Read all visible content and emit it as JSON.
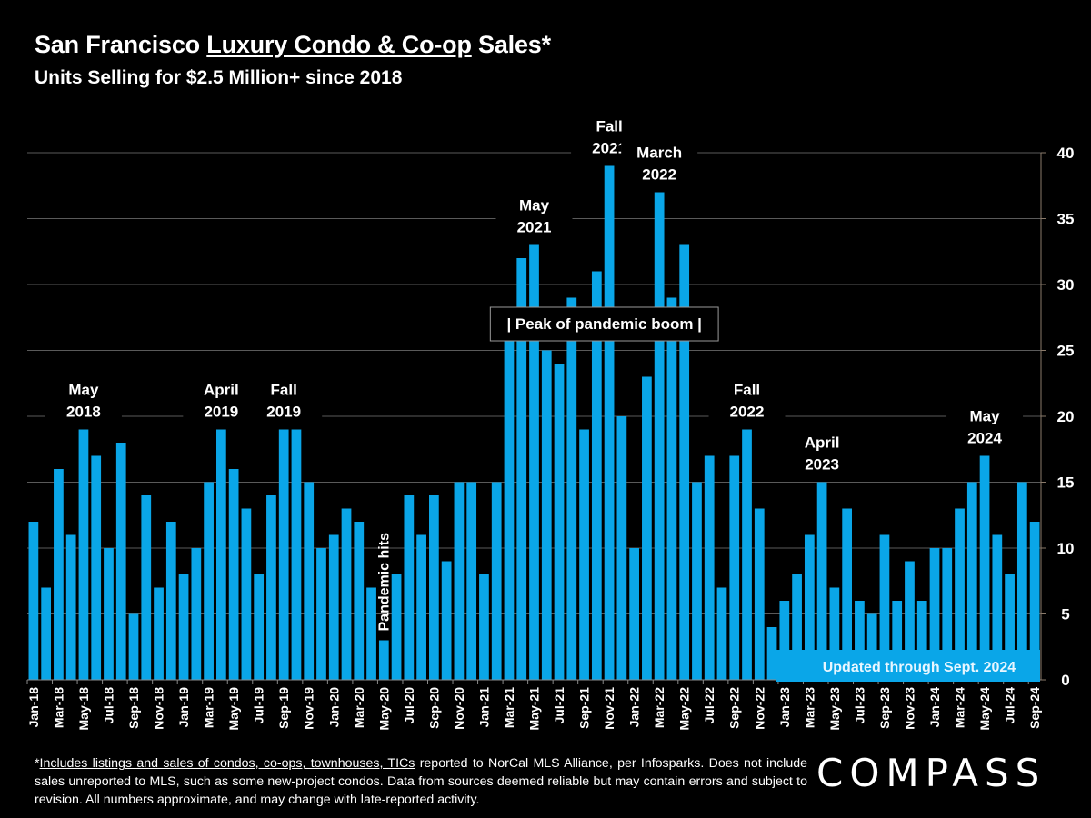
{
  "header": {
    "title_prefix": "San Francisco ",
    "title_underlined": "Luxury Condo & Co-op",
    "title_suffix": " Sales*",
    "subtitle": "Units Selling for $2.5 Million+ since 2018"
  },
  "footnote": {
    "underlined": "Includes listings and sales of condos, co-ops, townhouses, TICs",
    "prefix": "*",
    "rest": " reported to NorCal MLS Alliance, per Infosparks. Does not include sales unreported to MLS, such as some new-project condos. Data from sources deemed reliable but may contain errors and subject to revision.  All numbers approximate, and may change with late-reported activity."
  },
  "logo": {
    "text": "COMPASS"
  },
  "colors": {
    "bar": "#0aa6e8",
    "background": "#000000",
    "gridline": "#5a5a5a",
    "axis": "#8a7a6a",
    "text": "#ffffff"
  },
  "chart_data": {
    "type": "bar",
    "title": "San Francisco Luxury Condo & Co-op Sales*",
    "subtitle": "Units Selling for $2.5 Million+ since 2018",
    "xlabel": "",
    "ylabel": "",
    "ylim": [
      0,
      40
    ],
    "yticks": [
      0,
      5,
      10,
      15,
      20,
      25,
      30,
      35,
      40
    ],
    "y_axis_position": "right",
    "grid": true,
    "categories": [
      "Jan-18",
      "Feb-18",
      "Mar-18",
      "Apr-18",
      "May-18",
      "Jun-18",
      "Jul-18",
      "Aug-18",
      "Sep-18",
      "Oct-18",
      "Nov-18",
      "Dec-18",
      "Jan-19",
      "Feb-19",
      "Mar-19",
      "Apr-19",
      "May-19",
      "Jun-19",
      "Jul-19",
      "Aug-19",
      "Sep-19",
      "Oct-19",
      "Nov-19",
      "Dec-19",
      "Jan-20",
      "Feb-20",
      "Mar-20",
      "Apr-20",
      "May-20",
      "Jun-20",
      "Jul-20",
      "Aug-20",
      "Sep-20",
      "Oct-20",
      "Nov-20",
      "Dec-20",
      "Jan-21",
      "Feb-21",
      "Mar-21",
      "Apr-21",
      "May-21",
      "Jun-21",
      "Jul-21",
      "Aug-21",
      "Sep-21",
      "Oct-21",
      "Nov-21",
      "Dec-21",
      "Jan-22",
      "Feb-22",
      "Mar-22",
      "Apr-22",
      "May-22",
      "Jun-22",
      "Jul-22",
      "Aug-22",
      "Sep-22",
      "Oct-22",
      "Nov-22",
      "Dec-22",
      "Jan-23",
      "Feb-23",
      "Mar-23",
      "Apr-23",
      "May-23",
      "Jun-23",
      "Jul-23",
      "Aug-23",
      "Sep-23",
      "Oct-23",
      "Nov-23",
      "Dec-23",
      "Jan-24",
      "Feb-24",
      "Mar-24",
      "Apr-24",
      "May-24",
      "Jun-24",
      "Jul-24",
      "Aug-24",
      "Sep-24"
    ],
    "values": [
      12,
      7,
      16,
      11,
      19,
      17,
      10,
      18,
      5,
      14,
      7,
      12,
      8,
      10,
      15,
      19,
      16,
      13,
      8,
      14,
      19,
      19,
      15,
      10,
      11,
      13,
      12,
      7,
      3,
      8,
      14,
      11,
      14,
      9,
      15,
      15,
      8,
      15,
      26,
      32,
      33,
      25,
      24,
      29,
      19,
      31,
      39,
      20,
      10,
      23,
      37,
      29,
      33,
      15,
      17,
      7,
      17,
      19,
      13,
      4,
      6,
      8,
      11,
      15,
      7,
      13,
      6,
      5,
      11,
      6,
      9,
      6,
      10,
      10,
      13,
      15,
      17,
      11,
      8,
      15,
      12
    ],
    "tick_label_every": 2,
    "annotations": [
      {
        "text_lines": [
          "May",
          "2018"
        ],
        "category": "May-18"
      },
      {
        "text_lines": [
          "April",
          "2019"
        ],
        "category": "Apr-19"
      },
      {
        "text_lines": [
          "Fall",
          "2019"
        ],
        "category": "Sep-19"
      },
      {
        "text_lines": [
          "Pandemic hits"
        ],
        "category": "May-20",
        "rotated": true
      },
      {
        "text_lines": [
          "May",
          "2021"
        ],
        "category": "May-21"
      },
      {
        "text_lines": [
          "Fall",
          "2021"
        ],
        "category": "Nov-21"
      },
      {
        "text_lines": [
          "March",
          "2022"
        ],
        "category": "Mar-22"
      },
      {
        "text_lines": [
          "Fall",
          "2022"
        ],
        "category": "Oct-22"
      },
      {
        "text_lines": [
          "April",
          "2023"
        ],
        "category": "Apr-23"
      },
      {
        "text_lines": [
          "May",
          "2024"
        ],
        "category": "May-24"
      }
    ],
    "boxed_annotation": {
      "text": "|   Peak of pandemic boom   |",
      "from": "Feb-21",
      "to": "Jul-22"
    },
    "update_note": {
      "text": "Updated through Sept. 2024",
      "from": "Jan-23",
      "to": "Sep-24"
    }
  }
}
